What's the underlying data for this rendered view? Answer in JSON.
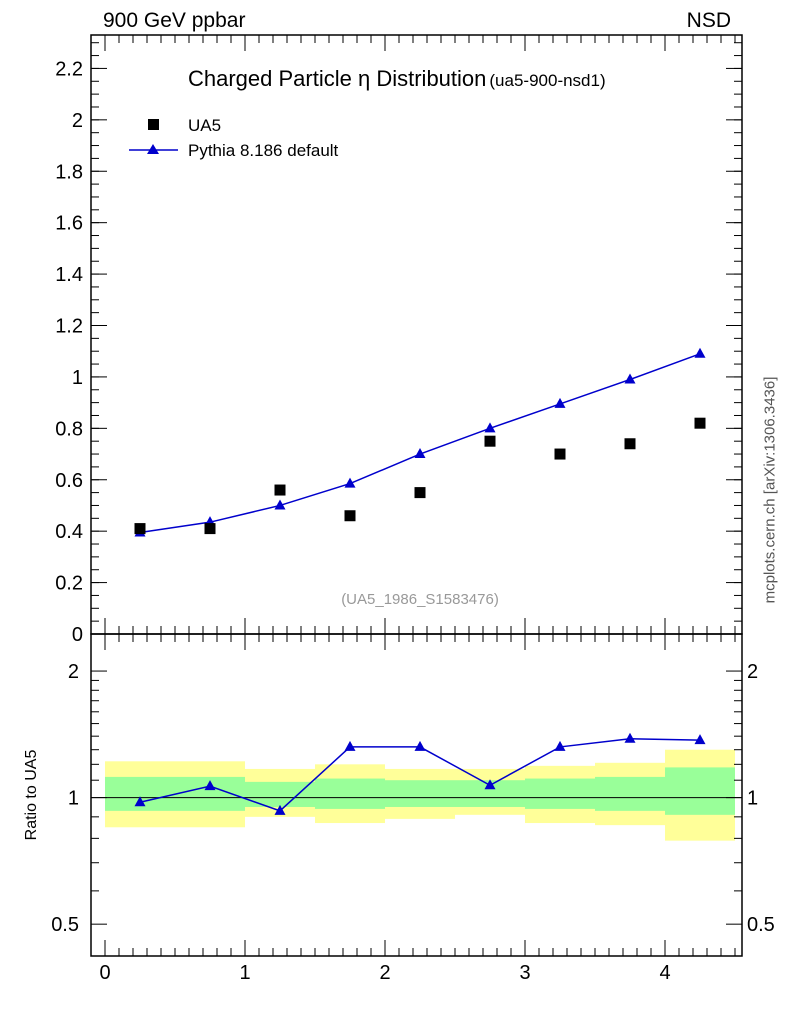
{
  "header": {
    "left": "900 GeV ppbar",
    "right": "NSD"
  },
  "side_credit": "mcplots.cern.ch [arXiv:1306.3436]",
  "colors": {
    "data_marker": "#000000",
    "mc_line": "#0000cc",
    "band_outer": "#ffff99",
    "band_inner": "#99ff99",
    "watermark": "#999999"
  },
  "chart_data": [
    {
      "type": "scatter",
      "panel": "main",
      "title": "Charged Particle",
      "title_symbol": "η",
      "title_rest": "Distribution",
      "title_suffix": "(ua5-900-nsd1)",
      "watermark": "(UA5_1986_S1583476)",
      "xlim": [
        -0.1,
        4.55
      ],
      "ylim": [
        0,
        2.33
      ],
      "yticks": [
        0,
        0.2,
        0.4,
        0.6,
        0.8,
        1,
        1.2,
        1.4,
        1.6,
        1.8,
        2,
        2.2
      ],
      "ytick_labels": [
        "0",
        "0.2",
        "0.4",
        "0.6",
        "0.8",
        "1",
        "1.2",
        "1.4",
        "1.6",
        "1.8",
        "2",
        "2.2"
      ],
      "legend_position": "top-left",
      "series": [
        {
          "name": "UA5",
          "marker": "square",
          "x": [
            0.25,
            0.75,
            1.25,
            1.75,
            2.25,
            2.75,
            3.25,
            3.75,
            4.25
          ],
          "y": [
            0.41,
            0.41,
            0.56,
            0.46,
            0.55,
            0.75,
            0.7,
            0.74,
            0.82
          ]
        },
        {
          "name": "Pythia 8.186 default",
          "marker": "triangle",
          "line": true,
          "x": [
            0.25,
            0.75,
            1.25,
            1.75,
            2.25,
            2.75,
            3.25,
            3.75,
            4.25
          ],
          "y": [
            0.395,
            0.435,
            0.5,
            0.585,
            0.7,
            0.8,
            0.895,
            0.99,
            1.09
          ]
        }
      ]
    },
    {
      "type": "line",
      "panel": "ratio",
      "ylabel": "Ratio to UA5",
      "yscale": "log",
      "ylim": [
        0.42,
        2.45
      ],
      "xlim": [
        -0.1,
        4.55
      ],
      "xticks": [
        0,
        1,
        2,
        3,
        4
      ],
      "xtick_labels": [
        "0",
        "1",
        "2",
        "3",
        "4"
      ],
      "yticks": [
        0.5,
        1,
        2
      ],
      "ytick_labels": [
        "0.5",
        "1",
        "2"
      ],
      "bins": [
        0,
        0.5,
        1,
        1.5,
        2,
        2.5,
        3,
        3.5,
        4,
        4.5
      ],
      "band_outer_low": [
        0.85,
        0.85,
        0.9,
        0.87,
        0.89,
        0.91,
        0.87,
        0.86,
        0.79
      ],
      "band_outer_high": [
        1.22,
        1.22,
        1.17,
        1.2,
        1.17,
        1.17,
        1.19,
        1.21,
        1.3
      ],
      "band_inner_low": [
        0.93,
        0.93,
        0.95,
        0.94,
        0.95,
        0.95,
        0.94,
        0.93,
        0.91
      ],
      "band_inner_high": [
        1.12,
        1.12,
        1.09,
        1.11,
        1.1,
        1.1,
        1.11,
        1.12,
        1.18
      ],
      "series": [
        {
          "name": "Pythia 8.186 default",
          "x": [
            0.25,
            0.75,
            1.25,
            1.75,
            2.25,
            2.75,
            3.25,
            3.75,
            4.25
          ],
          "y": [
            0.975,
            1.065,
            0.93,
            1.32,
            1.32,
            1.07,
            1.32,
            1.38,
            1.37
          ]
        }
      ]
    }
  ]
}
